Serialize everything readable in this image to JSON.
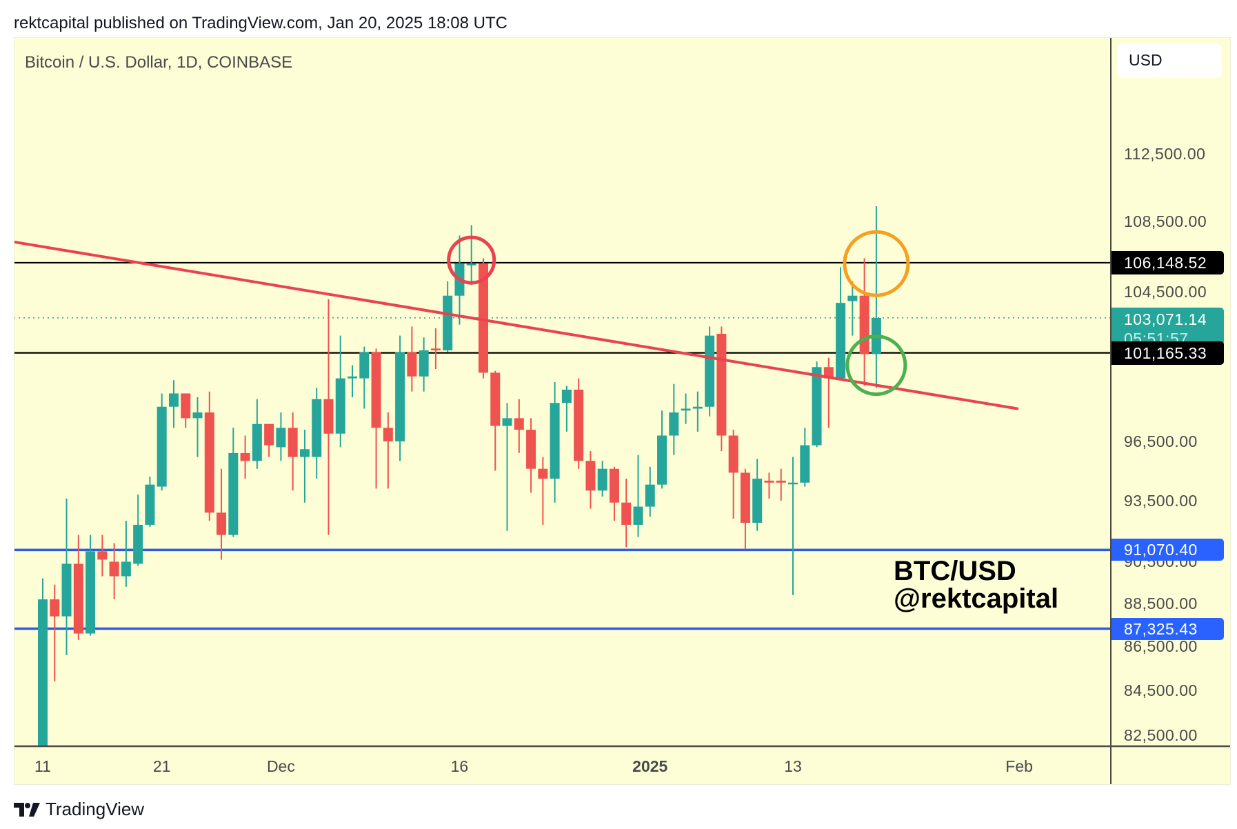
{
  "header": {
    "published_line": "rektcapital published on TradingView.com, Jan 20, 2025 18:08 UTC"
  },
  "chart_header": {
    "symbol_title": "Bitcoin / U.S. Dollar, 1D, COINBASE",
    "currency_button": "USD"
  },
  "price_axis": {
    "ticks": [
      {
        "label": "112,500.00",
        "value": 112500
      },
      {
        "label": "108,500.00",
        "value": 108500
      },
      {
        "label": "104,500.00",
        "value": 104500
      },
      {
        "label": "96,500.00",
        "value": 96500
      },
      {
        "label": "93,500.00",
        "value": 93500
      },
      {
        "label": "90,500.00",
        "value": 90500
      },
      {
        "label": "88,500.00",
        "value": 88500
      },
      {
        "label": "86,500.00",
        "value": 86500
      },
      {
        "label": "84,500.00",
        "value": 84500
      },
      {
        "label": "82,500.00",
        "value": 82500
      }
    ],
    "tags": {
      "resistance": {
        "label": "106,148.52",
        "value": 106148.52,
        "color": "#000000"
      },
      "last_price": {
        "label": "103,071.14",
        "countdown": "05:51:57",
        "value": 103071.14,
        "color": "#26a69a"
      },
      "support_black": {
        "label": "101,165.33",
        "value": 101165.33,
        "color": "#000000"
      },
      "support_blue_1": {
        "label": "91,070.40",
        "value": 91070.4,
        "color": "#2962ff"
      },
      "support_blue_2": {
        "label": "87,325.43",
        "value": 87325.43,
        "color": "#2962ff"
      }
    }
  },
  "time_axis": {
    "labels": [
      {
        "label": "11",
        "index": 0,
        "bold": false
      },
      {
        "label": "21",
        "index": 10,
        "bold": false
      },
      {
        "label": "Dec",
        "index": 20,
        "bold": false
      },
      {
        "label": "16",
        "index": 35,
        "bold": false
      },
      {
        "label": "2025",
        "index": 51,
        "bold": true
      },
      {
        "label": "13",
        "index": 63,
        "bold": false
      },
      {
        "label": "Feb",
        "index": 82,
        "bold": false
      }
    ]
  },
  "annotation": {
    "line1": "BTC/USD",
    "line2": "@rektcapital"
  },
  "footer": {
    "brand": "TradingView"
  },
  "colors": {
    "up": "#26a69a",
    "down": "#ef5350",
    "background": "#fdfdd6",
    "trendline": "#e8434f",
    "circle_red": "#e8434f",
    "circle_orange": "#f5a020",
    "circle_green": "#4caf50",
    "horizontal_black": "#000000",
    "horizontal_blue": "#2f5be0"
  },
  "chart_data": {
    "type": "candlestick",
    "title": "Bitcoin / U.S. Dollar, 1D, COINBASE",
    "xlabel": "",
    "ylabel": "USD",
    "scale": "log",
    "ylim": [
      81500,
      115500
    ],
    "grid": false,
    "x_ticks": [
      "11",
      "21",
      "Dec",
      "16",
      "2025",
      "13",
      "Feb"
    ],
    "y_ticks": [
      "112,500.00",
      "108,500.00",
      "104,500.00",
      "96,500.00",
      "93,500.00",
      "90,500.00",
      "88,500.00",
      "86,500.00",
      "84,500.00",
      "82,500.00"
    ],
    "date_range": "Nov 11, 2024 - Jan 20, 2025",
    "ohlc_columns": [
      "open",
      "high",
      "low",
      "close"
    ],
    "candles": [
      [
        80400,
        89700,
        80200,
        88700
      ],
      [
        88700,
        89400,
        84900,
        87900
      ],
      [
        87900,
        93600,
        86100,
        90400
      ],
      [
        90400,
        91800,
        86800,
        87100
      ],
      [
        87100,
        91800,
        87000,
        91000
      ],
      [
        91000,
        91800,
        89800,
        90600
      ],
      [
        90500,
        91400,
        88700,
        89800
      ],
      [
        89800,
        92500,
        89300,
        90500
      ],
      [
        90400,
        93800,
        90300,
        92300
      ],
      [
        92300,
        94700,
        92200,
        94300
      ],
      [
        94200,
        99000,
        94000,
        98300
      ],
      [
        98300,
        99700,
        97200,
        99000
      ],
      [
        99000,
        99000,
        97200,
        97700
      ],
      [
        97700,
        98800,
        95700,
        98000
      ],
      [
        98000,
        99100,
        92500,
        92900
      ],
      [
        92900,
        95100,
        90600,
        91800
      ],
      [
        91800,
        97200,
        91700,
        95900
      ],
      [
        95900,
        96800,
        94600,
        95500
      ],
      [
        95500,
        98700,
        95100,
        97400
      ],
      [
        97400,
        97400,
        95700,
        96300
      ],
      [
        96200,
        98000,
        95500,
        97200
      ],
      [
        97200,
        98000,
        94000,
        95700
      ],
      [
        95700,
        97100,
        93400,
        96100
      ],
      [
        95700,
        99300,
        94600,
        98700
      ],
      [
        98700,
        104100,
        91800,
        96900
      ],
      [
        96900,
        102100,
        96200,
        99800
      ],
      [
        99800,
        100500,
        98800,
        99900
      ],
      [
        99800,
        101500,
        98200,
        101200
      ],
      [
        101200,
        101400,
        94100,
        97200
      ],
      [
        97200,
        98000,
        94100,
        96500
      ],
      [
        96500,
        102100,
        95500,
        101200
      ],
      [
        101200,
        102600,
        99100,
        99900
      ],
      [
        99900,
        102000,
        99100,
        101300
      ],
      [
        101400,
        102500,
        100300,
        101300
      ],
      [
        101300,
        105100,
        101200,
        104300
      ],
      [
        104300,
        107700,
        102700,
        106100
      ],
      [
        106000,
        108300,
        104900,
        106100
      ],
      [
        106100,
        106400,
        99800,
        100100
      ],
      [
        100100,
        100200,
        95000,
        97300
      ],
      [
        97300,
        98500,
        92000,
        97700
      ],
      [
        97700,
        98700,
        95900,
        97100
      ],
      [
        97100,
        97700,
        93900,
        95100
      ],
      [
        95100,
        95700,
        92300,
        94600
      ],
      [
        94600,
        99600,
        93400,
        98500
      ],
      [
        98500,
        99400,
        97000,
        99200
      ],
      [
        99200,
        99800,
        95100,
        95500
      ],
      [
        95500,
        96000,
        93100,
        94000
      ],
      [
        94000,
        95500,
        93700,
        95100
      ],
      [
        95100,
        95200,
        92500,
        93400
      ],
      [
        93400,
        94600,
        91200,
        92300
      ],
      [
        92300,
        95800,
        91700,
        93200
      ],
      [
        93200,
        95200,
        92700,
        94300
      ],
      [
        94300,
        98100,
        94100,
        96800
      ],
      [
        96800,
        99500,
        95800,
        98000
      ],
      [
        98100,
        99000,
        97400,
        98200
      ],
      [
        98200,
        99100,
        97000,
        98300
      ],
      [
        98300,
        102600,
        97800,
        102100
      ],
      [
        102200,
        102600,
        96000,
        96800
      ],
      [
        96800,
        97100,
        92600,
        94900
      ],
      [
        94900,
        95100,
        91100,
        92400
      ],
      [
        92400,
        95600,
        92000,
        94600
      ],
      [
        94500,
        94900,
        93600,
        94400
      ],
      [
        94500,
        95100,
        93500,
        94400
      ],
      [
        94400,
        95700,
        88900,
        94400
      ],
      [
        94400,
        97200,
        94200,
        96300
      ],
      [
        96300,
        100700,
        96200,
        100400
      ],
      [
        100400,
        100900,
        97200,
        99800
      ],
      [
        99800,
        105900,
        99800,
        103900
      ],
      [
        104000,
        105100,
        102100,
        104300
      ],
      [
        104300,
        106400,
        99400,
        101100
      ],
      [
        101100,
        109400,
        99300,
        103071.14
      ]
    ],
    "horizontal_levels": [
      {
        "value": 106148.52,
        "color": "black"
      },
      {
        "value": 101165.33,
        "color": "black"
      },
      {
        "value": 91070.4,
        "color": "blue"
      },
      {
        "value": 87325.43,
        "color": "blue"
      }
    ],
    "last_price_line": {
      "value": 103071.14,
      "style": "dotted"
    },
    "trendline": {
      "from": {
        "index": -5,
        "price": 107600
      },
      "to": {
        "index": 82,
        "price": 98200
      },
      "color": "red"
    },
    "annotations": [
      {
        "type": "circle",
        "color": "red",
        "index": 36,
        "price": 106300
      },
      {
        "type": "circle",
        "color": "orange",
        "index": 70,
        "price": 106100
      },
      {
        "type": "circle",
        "color": "green",
        "index": 70,
        "price": 100500
      },
      {
        "type": "text",
        "text": "BTC/USD @rektcapital"
      }
    ]
  }
}
